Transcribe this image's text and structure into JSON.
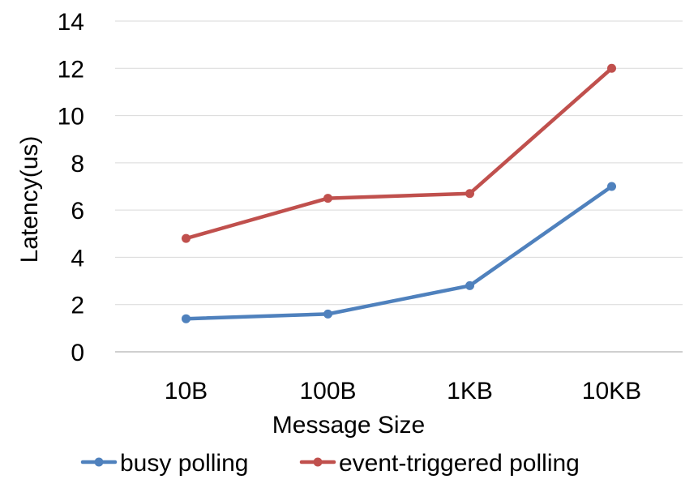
{
  "chart_data": {
    "type": "line",
    "title": "",
    "xlabel": "Message Size",
    "ylabel": "Latency(us)",
    "categories": [
      "10B",
      "100B",
      "1KB",
      "10KB"
    ],
    "ylim": [
      0,
      14
    ],
    "yticks": [
      0,
      2,
      4,
      6,
      8,
      10,
      12,
      14
    ],
    "grid": true,
    "legend_position": "bottom",
    "series": [
      {
        "name": "busy polling",
        "color": "#4F81BD",
        "values": [
          1.4,
          1.6,
          2.8,
          7.0
        ]
      },
      {
        "name": "event-triggered polling",
        "color": "#C0504D",
        "values": [
          4.8,
          6.5,
          6.7,
          12.0
        ]
      }
    ]
  }
}
